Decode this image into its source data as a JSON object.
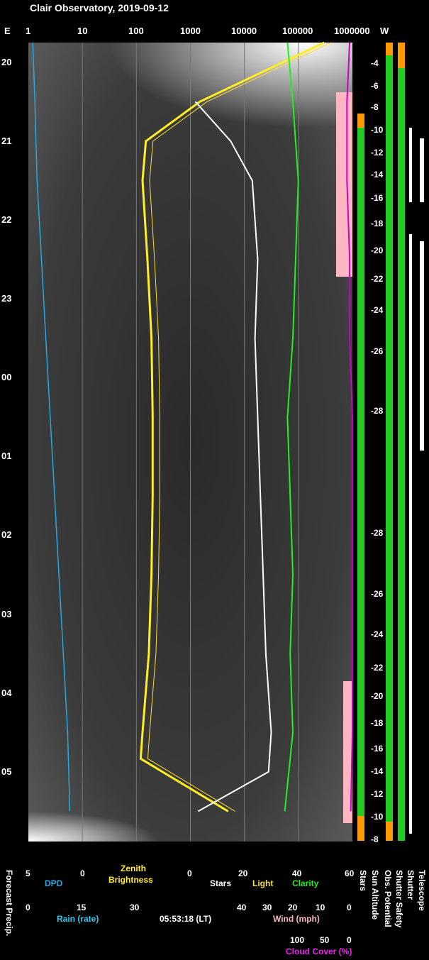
{
  "title": "Clair Observatory, 2019-09-12",
  "top_axis": {
    "east": "E",
    "west": "W",
    "ticks": [
      "1",
      "10",
      "100",
      "1000",
      "10000",
      "100000",
      "1000000"
    ]
  },
  "time_ticks": [
    "20",
    "21",
    "22",
    "23",
    "00",
    "01",
    "02",
    "03",
    "04",
    "05"
  ],
  "sun_altitude_ticks": [
    "-4",
    "-6",
    "-8",
    "-10",
    "-12",
    "-14",
    "-16",
    "-18",
    "-20",
    "-22",
    "-24",
    "-26",
    "-28",
    "-28",
    "-26",
    "-24",
    "-22",
    "-20",
    "-18",
    "-16",
    "-14",
    "-12",
    "-10",
    "-8"
  ],
  "dpd_axis": {
    "label": "DPD",
    "ticks": [
      "5",
      "0"
    ]
  },
  "zenith_axis": {
    "label_line1": "Zenith",
    "label_line2": "Brightness"
  },
  "stars_axis": {
    "label": "Stars",
    "ticks": [
      "0",
      "20",
      "40",
      "60"
    ]
  },
  "light_label": "Light",
  "clarity_label": "Clarity",
  "rain_axis": {
    "label": "Rain (rate)",
    "ticks": [
      "0",
      "15",
      "30"
    ]
  },
  "timestamp": "05:53:18 (LT)",
  "wind_axis": {
    "label": "Wind (mph)",
    "ticks": [
      "40",
      "30",
      "20",
      "10",
      "0"
    ]
  },
  "cloud_axis": {
    "label": "Cloud Cover (%)",
    "ticks": [
      "100",
      "50",
      "0"
    ]
  },
  "forecast_label": "Forecast Precip.",
  "vertical_labels": [
    "Stars",
    "Sun Altitude",
    "Obs. Potential",
    "Shutter Safety",
    "Shutter",
    "Telescope"
  ],
  "colors": {
    "dpd": "#22aadd",
    "zenith": "#ffee22",
    "light": "#ffdd33",
    "clarity": "#22ee22",
    "cloud": "#cc00cc",
    "pink": "#ffb6c1",
    "green": "#22cc22",
    "orange": "#ff9900",
    "white": "#ffffff"
  },
  "chart_data": {
    "type": "line",
    "title": "Clair Observatory, 2019-09-12",
    "x_scale": "log",
    "x_ticks": [
      1,
      10,
      100,
      1000,
      10000,
      100000,
      1000000
    ],
    "time_range": [
      "19:45",
      "05:53"
    ],
    "series": [
      {
        "name": "DPD",
        "time": [
          "19:45",
          "20:30",
          "21:30",
          "22:30",
          "23:30",
          "00:30",
          "01:30",
          "02:30",
          "03:30",
          "04:30",
          "05:30"
        ],
        "values": [
          4.6,
          4.4,
          4.2,
          3.8,
          3.4,
          3.0,
          2.6,
          2.2,
          1.8,
          1.4,
          1.2
        ]
      },
      {
        "name": "Zenith Brightness",
        "time": [
          "19:45",
          "20:30",
          "21:00",
          "21:30",
          "22:30",
          "23:30",
          "00:30",
          "01:30",
          "02:30",
          "03:30",
          "04:30",
          "04:50",
          "05:30"
        ],
        "values": [
          300000,
          1500,
          150,
          130,
          160,
          190,
          200,
          200,
          190,
          170,
          130,
          120,
          5000
        ]
      },
      {
        "name": "Stars",
        "time": [
          "20:30",
          "21:00",
          "21:30",
          "22:30",
          "23:30",
          "00:30",
          "01:30",
          "02:30",
          "03:30",
          "04:30",
          "05:00",
          "05:30"
        ],
        "values": [
          2,
          15,
          23,
          25,
          24,
          25,
          26,
          27,
          28,
          30,
          29,
          3
        ]
      },
      {
        "name": "Clarity",
        "time": [
          "19:45",
          "20:30",
          "21:30",
          "22:30",
          "23:30",
          "00:30",
          "01:30",
          "02:30",
          "03:30",
          "04:30",
          "05:30"
        ],
        "values": [
          36,
          38,
          40,
          39,
          38,
          36,
          37,
          38,
          37,
          38,
          35
        ]
      },
      {
        "name": "Cloud Cover (%)",
        "time": [
          "19:45",
          "20:30",
          "21:30",
          "22:30",
          "23:30",
          "00:30",
          "01:30",
          "02:30",
          "03:30",
          "04:30",
          "05:30"
        ],
        "values": [
          5,
          10,
          10,
          5,
          5,
          0,
          0,
          0,
          0,
          0,
          3
        ]
      }
    ]
  }
}
